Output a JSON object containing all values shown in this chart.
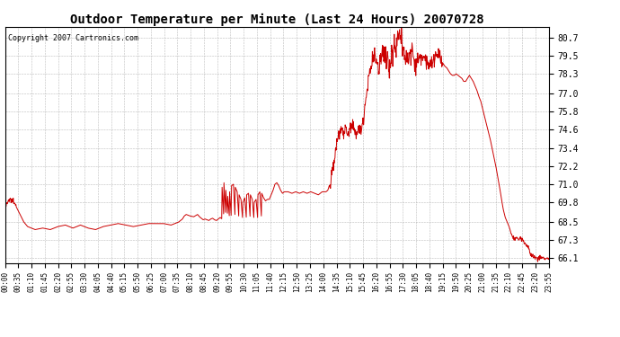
{
  "title": "Outdoor Temperature per Minute (Last 24 Hours) 20070728",
  "copyright_text": "Copyright 2007 Cartronics.com",
  "line_color": "#cc0000",
  "background_color": "#ffffff",
  "grid_color": "#aaaaaa",
  "yticks": [
    66.1,
    67.3,
    68.5,
    69.8,
    71.0,
    72.2,
    73.4,
    74.6,
    75.8,
    77.0,
    78.3,
    79.5,
    80.7
  ],
  "ylim": [
    65.8,
    81.4
  ],
  "xtick_labels": [
    "00:00",
    "00:35",
    "01:10",
    "01:45",
    "02:20",
    "02:55",
    "03:30",
    "04:05",
    "04:40",
    "05:15",
    "05:50",
    "06:25",
    "07:00",
    "07:35",
    "08:10",
    "08:45",
    "09:20",
    "09:55",
    "10:30",
    "11:05",
    "11:40",
    "12:15",
    "12:50",
    "13:25",
    "14:00",
    "14:35",
    "15:10",
    "15:45",
    "16:20",
    "16:55",
    "17:30",
    "18:05",
    "18:40",
    "19:15",
    "19:50",
    "20:25",
    "21:00",
    "21:35",
    "22:10",
    "22:45",
    "23:20",
    "23:55"
  ],
  "waypoints": [
    [
      0,
      69.5
    ],
    [
      5,
      69.6
    ],
    [
      10,
      69.9
    ],
    [
      15,
      70.0
    ],
    [
      20,
      69.8
    ],
    [
      25,
      69.7
    ],
    [
      30,
      69.5
    ],
    [
      35,
      69.3
    ],
    [
      40,
      69.0
    ],
    [
      45,
      68.7
    ],
    [
      50,
      68.4
    ],
    [
      55,
      68.2
    ],
    [
      60,
      68.1
    ],
    [
      70,
      68.0
    ],
    [
      80,
      68.0
    ],
    [
      90,
      68.1
    ],
    [
      100,
      68.2
    ],
    [
      110,
      68.1
    ],
    [
      120,
      68.0
    ],
    [
      130,
      68.2
    ],
    [
      140,
      68.3
    ],
    [
      150,
      68.4
    ],
    [
      160,
      68.3
    ],
    [
      170,
      68.2
    ],
    [
      180,
      68.1
    ],
    [
      190,
      68.3
    ],
    [
      200,
      68.4
    ],
    [
      210,
      68.3
    ],
    [
      220,
      68.1
    ],
    [
      230,
      68.0
    ],
    [
      240,
      68.1
    ],
    [
      250,
      68.0
    ],
    [
      260,
      68.2
    ],
    [
      270,
      68.4
    ],
    [
      280,
      68.3
    ],
    [
      290,
      68.2
    ],
    [
      300,
      68.4
    ],
    [
      310,
      68.2
    ],
    [
      320,
      68.3
    ],
    [
      330,
      68.2
    ],
    [
      340,
      68.1
    ],
    [
      350,
      68.3
    ],
    [
      360,
      68.3
    ],
    [
      370,
      68.2
    ],
    [
      380,
      68.4
    ],
    [
      390,
      68.4
    ],
    [
      400,
      68.4
    ],
    [
      410,
      68.4
    ],
    [
      420,
      68.4
    ],
    [
      430,
      68.4
    ],
    [
      440,
      68.3
    ],
    [
      450,
      68.4
    ],
    [
      460,
      68.5
    ],
    [
      470,
      68.7
    ],
    [
      480,
      69.0
    ],
    [
      490,
      68.9
    ],
    [
      500,
      68.8
    ],
    [
      510,
      69.1
    ],
    [
      520,
      69.0
    ],
    [
      530,
      68.8
    ],
    [
      540,
      68.7
    ],
    [
      545,
      68.6
    ],
    [
      550,
      68.6
    ],
    [
      555,
      68.8
    ],
    [
      560,
      68.8
    ],
    [
      565,
      68.7
    ],
    [
      570,
      68.8
    ],
    [
      575,
      68.9
    ],
    [
      580,
      69.0
    ],
    [
      585,
      68.7
    ],
    [
      590,
      68.6
    ],
    [
      595,
      68.6
    ],
    [
      600,
      68.8
    ],
    [
      605,
      68.7
    ],
    [
      610,
      68.6
    ],
    [
      615,
      68.5
    ],
    [
      620,
      68.5
    ],
    [
      625,
      68.5
    ],
    [
      630,
      68.5
    ],
    [
      635,
      68.5
    ],
    [
      640,
      68.5
    ],
    [
      645,
      68.5
    ],
    [
      650,
      68.5
    ],
    [
      655,
      68.5
    ],
    [
      660,
      68.5
    ],
    [
      665,
      68.5
    ],
    [
      670,
      68.5
    ],
    [
      680,
      68.5
    ],
    [
      555,
      68.8
    ],
    [
      570,
      69.0
    ],
    [
      560,
      68.9
    ],
    [
      572,
      69.1
    ],
    [
      576,
      68.8
    ],
    [
      580,
      68.7
    ],
    [
      570,
      68.9
    ],
    [
      575,
      68.8
    ],
    [
      580,
      68.8
    ],
    [
      590,
      69.5
    ],
    [
      595,
      70.5
    ],
    [
      600,
      71.0
    ],
    [
      605,
      70.7
    ],
    [
      610,
      70.4
    ],
    [
      615,
      70.5
    ],
    [
      620,
      70.4
    ],
    [
      625,
      70.6
    ],
    [
      630,
      70.7
    ],
    [
      635,
      70.5
    ],
    [
      640,
      70.3
    ],
    [
      645,
      70.0
    ],
    [
      650,
      69.8
    ],
    [
      655,
      70.0
    ],
    [
      660,
      70.1
    ],
    [
      665,
      70.0
    ],
    [
      670,
      70.3
    ],
    [
      675,
      70.5
    ],
    [
      680,
      70.4
    ],
    [
      685,
      70.2
    ],
    [
      690,
      70.1
    ],
    [
      695,
      70.0
    ],
    [
      700,
      69.9
    ],
    [
      705,
      70.1
    ],
    [
      710,
      70.5
    ],
    [
      715,
      71.0
    ],
    [
      720,
      71.1
    ],
    [
      725,
      70.9
    ],
    [
      730,
      70.7
    ],
    [
      735,
      70.5
    ],
    [
      740,
      70.4
    ],
    [
      745,
      70.5
    ],
    [
      750,
      70.6
    ],
    [
      755,
      70.5
    ],
    [
      760,
      70.4
    ],
    [
      765,
      70.3
    ],
    [
      770,
      70.5
    ],
    [
      775,
      70.5
    ],
    [
      780,
      70.4
    ],
    [
      785,
      70.3
    ],
    [
      790,
      70.5
    ],
    [
      795,
      70.5
    ],
    [
      800,
      70.4
    ],
    [
      805,
      70.3
    ],
    [
      810,
      70.5
    ],
    [
      815,
      70.5
    ],
    [
      820,
      70.4
    ],
    [
      825,
      70.5
    ],
    [
      830,
      70.3
    ],
    [
      835,
      70.2
    ],
    [
      840,
      70.5
    ],
    [
      850,
      70.5
    ],
    [
      855,
      70.5
    ],
    [
      860,
      70.5
    ],
    [
      570,
      68.9
    ],
    [
      575,
      68.75
    ],
    [
      580,
      68.8
    ],
    [
      590,
      68.8
    ],
    [
      595,
      68.85
    ]
  ],
  "waypoints_clean": [
    [
      0,
      69.5
    ],
    [
      5,
      69.65
    ],
    [
      12,
      70.0
    ],
    [
      18,
      69.9
    ],
    [
      25,
      69.75
    ],
    [
      32,
      69.4
    ],
    [
      40,
      69.0
    ],
    [
      50,
      68.5
    ],
    [
      60,
      68.2
    ],
    [
      80,
      68.0
    ],
    [
      100,
      68.1
    ],
    [
      120,
      68.0
    ],
    [
      140,
      68.2
    ],
    [
      160,
      68.3
    ],
    [
      180,
      68.1
    ],
    [
      200,
      68.3
    ],
    [
      220,
      68.1
    ],
    [
      240,
      68.0
    ],
    [
      260,
      68.2
    ],
    [
      280,
      68.3
    ],
    [
      300,
      68.4
    ],
    [
      320,
      68.3
    ],
    [
      340,
      68.2
    ],
    [
      360,
      68.3
    ],
    [
      380,
      68.4
    ],
    [
      400,
      68.4
    ],
    [
      420,
      68.4
    ],
    [
      440,
      68.3
    ],
    [
      460,
      68.5
    ],
    [
      470,
      68.7
    ],
    [
      475,
      68.9
    ],
    [
      480,
      69.0
    ],
    [
      490,
      68.9
    ],
    [
      500,
      68.85
    ],
    [
      510,
      69.0
    ],
    [
      515,
      68.85
    ],
    [
      520,
      68.75
    ],
    [
      525,
      68.65
    ],
    [
      530,
      68.7
    ],
    [
      535,
      68.65
    ],
    [
      540,
      68.6
    ],
    [
      545,
      68.7
    ],
    [
      550,
      68.75
    ],
    [
      555,
      68.65
    ],
    [
      560,
      68.6
    ],
    [
      565,
      68.7
    ],
    [
      570,
      68.8
    ],
    [
      575,
      68.7
    ],
    [
      580,
      68.6
    ],
    [
      585,
      68.65
    ],
    [
      590,
      68.7
    ],
    [
      595,
      68.6
    ],
    [
      600,
      68.55
    ],
    [
      610,
      68.5
    ],
    [
      620,
      68.5
    ],
    [
      630,
      68.5
    ],
    [
      640,
      68.5
    ],
    [
      650,
      68.5
    ],
    [
      660,
      68.5
    ],
    [
      670,
      68.5
    ],
    [
      680,
      68.5
    ],
    [
      575,
      70.8
    ],
    [
      580,
      71.1
    ],
    [
      585,
      70.6
    ],
    [
      590,
      70.2
    ],
    [
      595,
      70.5
    ],
    [
      600,
      70.9
    ],
    [
      605,
      71.0
    ],
    [
      610,
      70.8
    ],
    [
      615,
      70.5
    ],
    [
      620,
      70.3
    ],
    [
      625,
      70.0
    ],
    [
      630,
      69.8
    ],
    [
      635,
      70.1
    ],
    [
      640,
      70.3
    ],
    [
      645,
      70.4
    ],
    [
      650,
      70.3
    ],
    [
      655,
      70.0
    ],
    [
      660,
      69.8
    ],
    [
      665,
      70.0
    ],
    [
      670,
      70.3
    ],
    [
      675,
      70.5
    ],
    [
      680,
      70.4
    ],
    [
      685,
      70.1
    ],
    [
      690,
      69.9
    ],
    [
      695,
      70.0
    ],
    [
      700,
      70.0
    ],
    [
      705,
      70.3
    ],
    [
      710,
      70.6
    ],
    [
      715,
      71.0
    ],
    [
      720,
      71.1
    ],
    [
      725,
      70.9
    ],
    [
      730,
      70.6
    ],
    [
      735,
      70.4
    ],
    [
      740,
      70.5
    ],
    [
      750,
      70.5
    ],
    [
      760,
      70.4
    ],
    [
      770,
      70.5
    ],
    [
      780,
      70.4
    ],
    [
      790,
      70.5
    ],
    [
      800,
      70.4
    ],
    [
      810,
      70.5
    ],
    [
      820,
      70.4
    ],
    [
      830,
      70.3
    ],
    [
      840,
      70.5
    ],
    [
      850,
      70.5
    ],
    [
      855,
      70.6
    ],
    [
      860,
      71.0
    ],
    [
      865,
      71.8
    ],
    [
      870,
      72.5
    ],
    [
      875,
      73.2
    ],
    [
      880,
      73.8
    ],
    [
      885,
      74.3
    ],
    [
      890,
      74.6
    ],
    [
      895,
      74.5
    ],
    [
      900,
      74.7
    ],
    [
      905,
      74.5
    ],
    [
      910,
      74.4
    ],
    [
      915,
      74.6
    ],
    [
      920,
      74.8
    ],
    [
      925,
      74.5
    ],
    [
      930,
      74.4
    ],
    [
      935,
      74.6
    ],
    [
      940,
      74.5
    ],
    [
      945,
      74.8
    ],
    [
      950,
      75.5
    ],
    [
      955,
      76.5
    ],
    [
      960,
      77.5
    ],
    [
      965,
      78.2
    ],
    [
      970,
      78.8
    ],
    [
      975,
      79.4
    ],
    [
      980,
      79.6
    ],
    [
      985,
      79.0
    ],
    [
      990,
      78.6
    ],
    [
      995,
      79.0
    ],
    [
      1000,
      79.5
    ],
    [
      1005,
      79.8
    ],
    [
      1010,
      79.5
    ],
    [
      1015,
      79.0
    ],
    [
      1018,
      78.5
    ],
    [
      1020,
      78.8
    ],
    [
      1025,
      79.5
    ],
    [
      1030,
      79.8
    ],
    [
      1035,
      80.2
    ],
    [
      1040,
      80.5
    ],
    [
      1045,
      80.7
    ],
    [
      1050,
      80.5
    ],
    [
      1055,
      80.1
    ],
    [
      1060,
      79.6
    ],
    [
      1065,
      79.3
    ],
    [
      1070,
      79.5
    ],
    [
      1075,
      79.8
    ],
    [
      1080,
      79.5
    ],
    [
      1085,
      79.2
    ],
    [
      1090,
      79.0
    ],
    [
      1095,
      79.3
    ],
    [
      1100,
      79.5
    ],
    [
      1110,
      79.5
    ],
    [
      1115,
      79.3
    ],
    [
      1120,
      79.0
    ],
    [
      1125,
      78.8
    ],
    [
      1130,
      79.0
    ],
    [
      1135,
      79.2
    ],
    [
      1140,
      79.5
    ],
    [
      1145,
      79.5
    ],
    [
      1150,
      79.4
    ],
    [
      1155,
      79.2
    ],
    [
      1160,
      79.0
    ],
    [
      1165,
      78.8
    ],
    [
      1170,
      78.7
    ],
    [
      1175,
      78.5
    ],
    [
      1180,
      78.3
    ],
    [
      1185,
      78.2
    ],
    [
      1190,
      78.2
    ],
    [
      1195,
      78.3
    ],
    [
      1200,
      78.2
    ],
    [
      1210,
      78.0
    ],
    [
      1215,
      77.8
    ],
    [
      1220,
      77.8
    ],
    [
      1225,
      78.0
    ],
    [
      1230,
      78.2
    ],
    [
      1235,
      78.0
    ],
    [
      1240,
      77.8
    ],
    [
      1245,
      77.5
    ],
    [
      1250,
      77.2
    ],
    [
      1255,
      76.8
    ],
    [
      1260,
      76.5
    ],
    [
      1265,
      76.0
    ],
    [
      1270,
      75.5
    ],
    [
      1275,
      75.0
    ],
    [
      1280,
      74.5
    ],
    [
      1285,
      74.0
    ],
    [
      1290,
      73.4
    ],
    [
      1295,
      72.8
    ],
    [
      1300,
      72.2
    ],
    [
      1305,
      71.5
    ],
    [
      1310,
      70.8
    ],
    [
      1315,
      70.0
    ],
    [
      1320,
      69.3
    ],
    [
      1325,
      68.8
    ],
    [
      1330,
      68.5
    ],
    [
      1335,
      68.2
    ],
    [
      1340,
      67.8
    ],
    [
      1345,
      67.5
    ],
    [
      1350,
      67.4
    ],
    [
      1355,
      67.5
    ],
    [
      1360,
      67.3
    ],
    [
      1365,
      67.5
    ],
    [
      1370,
      67.3
    ],
    [
      1375,
      67.2
    ],
    [
      1380,
      67.0
    ],
    [
      1385,
      66.8
    ],
    [
      1390,
      66.5
    ],
    [
      1395,
      66.3
    ],
    [
      1400,
      66.2
    ],
    [
      1410,
      66.1
    ],
    [
      1420,
      66.15
    ],
    [
      1430,
      66.1
    ],
    [
      1440,
      66.1
    ]
  ]
}
